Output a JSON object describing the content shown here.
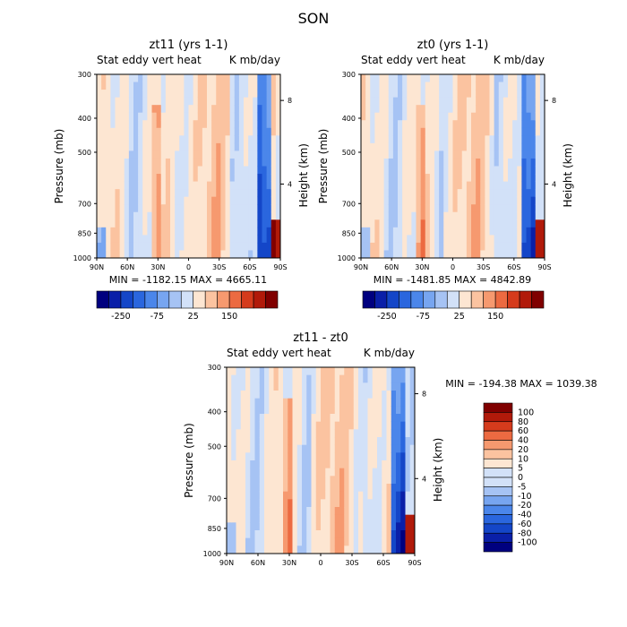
{
  "figure": {
    "title": "SON"
  },
  "colors": {
    "levels": [
      "#00007f",
      "#0a1fa8",
      "#1446c8",
      "#2a66de",
      "#4b86ea",
      "#77a5f0",
      "#a6c3f4",
      "#d2e1f8",
      "#fde6d2",
      "#fbc3a0",
      "#f6996f",
      "#ec6a41",
      "#d53b1c",
      "#b11a0a",
      "#800000"
    ]
  },
  "chart_data": [
    {
      "type": "heatmap",
      "title": "zt11 (yrs 1-1)",
      "variable_label": "Stat eddy vert heat",
      "units_label": "K mb/day",
      "ylabel": "Pressure (mb)",
      "y2label": "Height (km)",
      "x_ticks": [
        "90N",
        "60N",
        "30N",
        "0",
        "30S",
        "60S",
        "90S"
      ],
      "y_ticks": [
        "300",
        "400",
        "500",
        "700",
        "850",
        "1000"
      ],
      "y2_ticks": [
        "8",
        "4"
      ],
      "ylim": [
        1000,
        300
      ],
      "stats": "MIN = -1182.15   MAX = 4665.11",
      "min": -1182.15,
      "max": 4665.11,
      "colorbar_labels": [
        "-250",
        "-75",
        "25",
        "150"
      ],
      "colorbar_orientation": "horizontal"
    },
    {
      "type": "heatmap",
      "title": "zt0 (yrs 1-1)",
      "variable_label": "Stat eddy vert heat",
      "units_label": "K mb/day",
      "ylabel": "Pressure (mb)",
      "y2label": "Height (km)",
      "x_ticks": [
        "90N",
        "60N",
        "30N",
        "0",
        "30S",
        "60S",
        "90S"
      ],
      "y_ticks": [
        "300",
        "400",
        "500",
        "700",
        "850",
        "1000"
      ],
      "y2_ticks": [
        "8",
        "4"
      ],
      "ylim": [
        1000,
        300
      ],
      "stats": "MIN = -1481.85   MAX = 4842.89",
      "min": -1481.85,
      "max": 4842.89,
      "colorbar_labels": [
        "-250",
        "-75",
        "25",
        "150"
      ],
      "colorbar_orientation": "horizontal"
    },
    {
      "type": "heatmap",
      "title": "zt11 - zt0",
      "variable_label": "Stat eddy vert heat",
      "units_label": "K mb/day",
      "ylabel": "Pressure (mb)",
      "y2label": "Height (km)",
      "x_ticks": [
        "90N",
        "60N",
        "30N",
        "0",
        "30S",
        "60S",
        "90S"
      ],
      "y_ticks": [
        "300",
        "400",
        "500",
        "700",
        "850",
        "1000"
      ],
      "y2_ticks": [
        "8",
        "4"
      ],
      "ylim": [
        1000,
        300
      ],
      "stats": "MIN = -194.38   MAX = 1039.38",
      "min": -194.38,
      "max": 1039.38,
      "colorbar_labels": [
        "100",
        "80",
        "60",
        "40",
        "20",
        "10",
        "5",
        "0",
        "-5",
        "-10",
        "-20",
        "-40",
        "-60",
        "-80",
        "-100"
      ],
      "colorbar_orientation": "vertical"
    }
  ]
}
